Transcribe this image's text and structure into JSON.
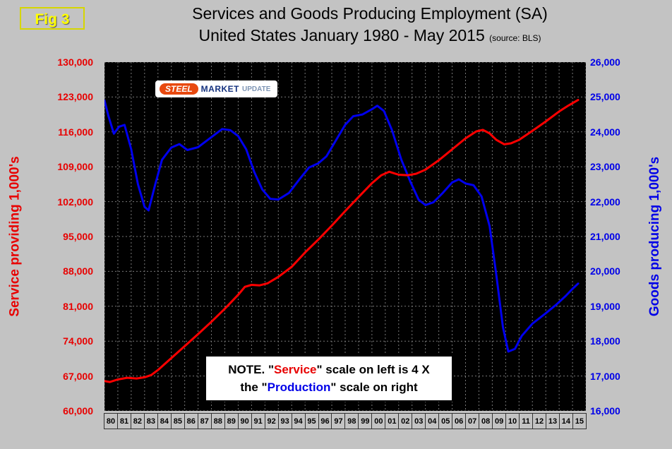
{
  "fig_label": "Fig 3",
  "title": {
    "line1": "Services and Goods Producing Employment (SA)",
    "line2": "United States January 1980 - May 2015",
    "source": "(source: BLS)"
  },
  "logo": {
    "steel": "STEEL",
    "market": "MARKET",
    "update": "UPDATE"
  },
  "note": {
    "p1": "NOTE. \"",
    "service": "Service",
    "p2": "\" scale on left  is 4 X",
    "p3": "the \"",
    "production": "Production",
    "p4": "\" scale on right"
  },
  "left_axis": {
    "label": "Service providing 1,000's",
    "color": "#e80000",
    "ticks": [
      "130,000",
      "123,000",
      "116,000",
      "109,000",
      "102,000",
      "95,000",
      "88,000",
      "81,000",
      "74,000",
      "67,000",
      "60,000"
    ]
  },
  "right_axis": {
    "label": "Goods producing 1,000's",
    "color": "#0000e8",
    "ticks": [
      "26,000",
      "25,000",
      "24,000",
      "23,000",
      "22,000",
      "21,000",
      "20,000",
      "19,000",
      "18,000",
      "17,000",
      "16,000"
    ]
  },
  "chart_data": {
    "type": "line",
    "title": "Services and Goods Producing Employment (SA) United States January 1980 - May 2015",
    "x_domain": [
      1980,
      2016
    ],
    "x_tick_labels": [
      "80",
      "81",
      "82",
      "83",
      "84",
      "85",
      "86",
      "87",
      "88",
      "89",
      "90",
      "91",
      "92",
      "93",
      "94",
      "95",
      "96",
      "97",
      "98",
      "99",
      "00",
      "01",
      "02",
      "03",
      "04",
      "05",
      "06",
      "07",
      "08",
      "09",
      "10",
      "11",
      "12",
      "13",
      "14",
      "15"
    ],
    "left_ylim": [
      60000,
      130000
    ],
    "right_ylim": [
      16000,
      26000
    ],
    "grid": true,
    "series": [
      {
        "name": "Service providing 1,000's",
        "axis": "left",
        "color": "#ff0000",
        "points": [
          [
            1980,
            66000
          ],
          [
            1980.4,
            65800
          ],
          [
            1981,
            66300
          ],
          [
            1981.7,
            66650
          ],
          [
            1982.4,
            66500
          ],
          [
            1983,
            66750
          ],
          [
            1983.5,
            67200
          ],
          [
            1984,
            68200
          ],
          [
            1985,
            70600
          ],
          [
            1986,
            73000
          ],
          [
            1987,
            75400
          ],
          [
            1988,
            77900
          ],
          [
            1989,
            80500
          ],
          [
            1990,
            83300
          ],
          [
            1990.5,
            84900
          ],
          [
            1991,
            85300
          ],
          [
            1991.6,
            85200
          ],
          [
            1992.2,
            85600
          ],
          [
            1993,
            86900
          ],
          [
            1994,
            88900
          ],
          [
            1995,
            91800
          ],
          [
            1996,
            94400
          ],
          [
            1997,
            97200
          ],
          [
            1998,
            100100
          ],
          [
            1999,
            102900
          ],
          [
            2000,
            105700
          ],
          [
            2000.7,
            107300
          ],
          [
            2001.3,
            108000
          ],
          [
            2002,
            107400
          ],
          [
            2002.7,
            107300
          ],
          [
            2003.3,
            107600
          ],
          [
            2004,
            108400
          ],
          [
            2005,
            110300
          ],
          [
            2006,
            112500
          ],
          [
            2007,
            114700
          ],
          [
            2007.8,
            116100
          ],
          [
            2008.3,
            116400
          ],
          [
            2008.8,
            115700
          ],
          [
            2009.3,
            114400
          ],
          [
            2009.9,
            113500
          ],
          [
            2010.4,
            113700
          ],
          [
            2011,
            114400
          ],
          [
            2012,
            116200
          ],
          [
            2013,
            118100
          ],
          [
            2014,
            120100
          ],
          [
            2014.7,
            121300
          ],
          [
            2015.42,
            122400
          ]
        ]
      },
      {
        "name": "Goods producing 1,000's",
        "axis": "right",
        "color": "#0000ee",
        "points": [
          [
            1980,
            24900
          ],
          [
            1980.3,
            24450
          ],
          [
            1980.7,
            23950
          ],
          [
            1981.1,
            24150
          ],
          [
            1981.5,
            24200
          ],
          [
            1982,
            23500
          ],
          [
            1982.5,
            22500
          ],
          [
            1983,
            21850
          ],
          [
            1983.3,
            21750
          ],
          [
            1983.8,
            22500
          ],
          [
            1984.3,
            23200
          ],
          [
            1985,
            23550
          ],
          [
            1985.6,
            23650
          ],
          [
            1986.2,
            23480
          ],
          [
            1987,
            23560
          ],
          [
            1988,
            23850
          ],
          [
            1988.8,
            24080
          ],
          [
            1989.4,
            24050
          ],
          [
            1990,
            23880
          ],
          [
            1990.6,
            23500
          ],
          [
            1991.2,
            22850
          ],
          [
            1991.8,
            22350
          ],
          [
            1992.4,
            22080
          ],
          [
            1993,
            22060
          ],
          [
            1993.8,
            22250
          ],
          [
            1994.6,
            22650
          ],
          [
            1995.3,
            22980
          ],
          [
            1996,
            23100
          ],
          [
            1996.6,
            23300
          ],
          [
            1997.3,
            23750
          ],
          [
            1998,
            24200
          ],
          [
            1998.6,
            24450
          ],
          [
            1999.3,
            24500
          ],
          [
            2000,
            24650
          ],
          [
            2000.4,
            24750
          ],
          [
            2000.9,
            24600
          ],
          [
            2001.5,
            24050
          ],
          [
            2002.2,
            23200
          ],
          [
            2002.9,
            22550
          ],
          [
            2003.5,
            22050
          ],
          [
            2004,
            21900
          ],
          [
            2004.6,
            21980
          ],
          [
            2005.3,
            22250
          ],
          [
            2006,
            22550
          ],
          [
            2006.5,
            22640
          ],
          [
            2007,
            22520
          ],
          [
            2007.6,
            22470
          ],
          [
            2008.2,
            22150
          ],
          [
            2008.8,
            21300
          ],
          [
            2009.3,
            19900
          ],
          [
            2009.8,
            18400
          ],
          [
            2010.2,
            17700
          ],
          [
            2010.7,
            17780
          ],
          [
            2011.2,
            18150
          ],
          [
            2012,
            18500
          ],
          [
            2013,
            18800
          ],
          [
            2013.8,
            19050
          ],
          [
            2014.5,
            19300
          ],
          [
            2015,
            19500
          ],
          [
            2015.42,
            19650
          ]
        ]
      }
    ]
  }
}
